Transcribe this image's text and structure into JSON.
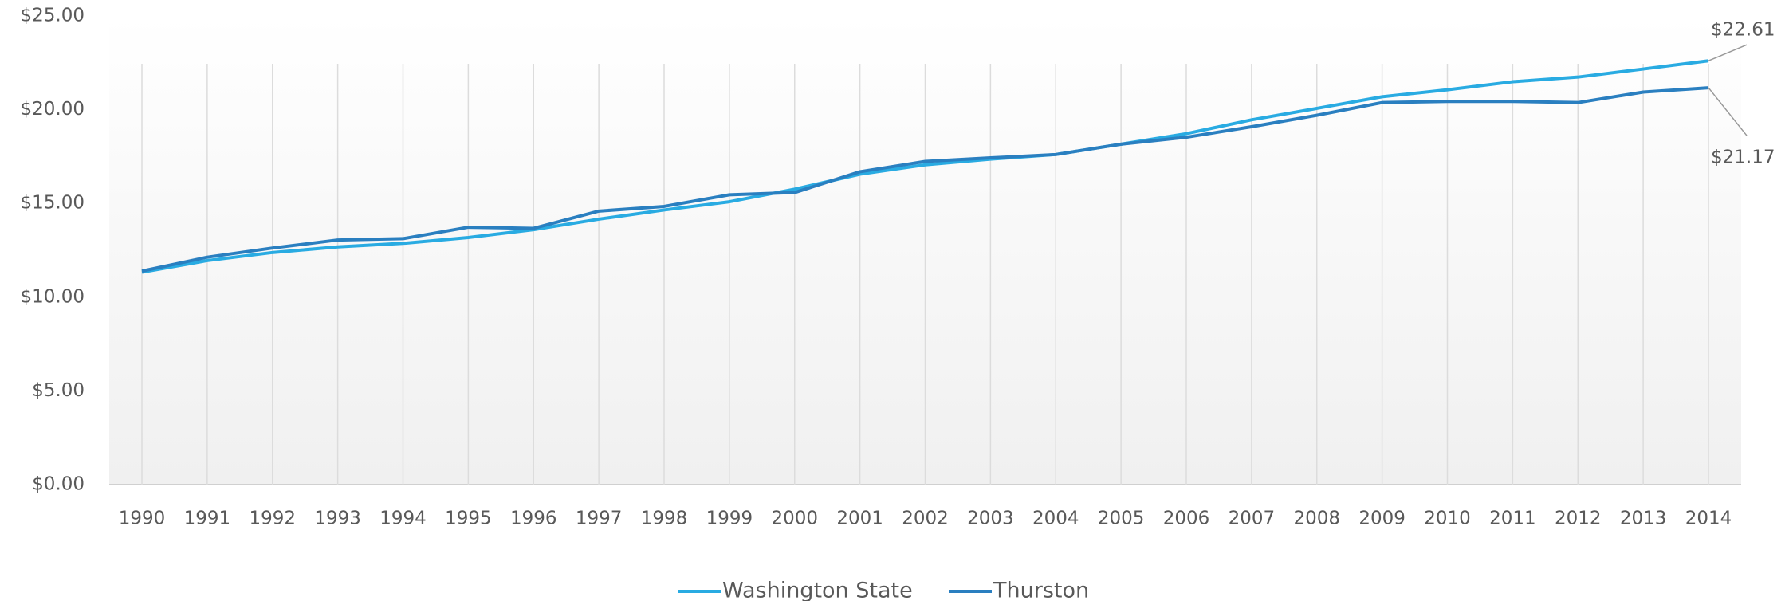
{
  "chart_data": {
    "type": "line",
    "categories": [
      "1990",
      "1991",
      "1992",
      "1993",
      "1994",
      "1995",
      "1996",
      "1997",
      "1998",
      "1999",
      "2000",
      "2001",
      "2002",
      "2003",
      "2004",
      "2005",
      "2006",
      "2007",
      "2008",
      "2009",
      "2010",
      "2011",
      "2012",
      "2013",
      "2014"
    ],
    "series": [
      {
        "name": "Washington State",
        "color": "#29abe2",
        "values": [
          11.33,
          11.95,
          12.38,
          12.68,
          12.87,
          13.18,
          13.6,
          14.16,
          14.65,
          15.09,
          15.76,
          16.56,
          17.06,
          17.36,
          17.61,
          18.16,
          18.72,
          19.46,
          20.07,
          20.69,
          21.06,
          21.49,
          21.74,
          22.17,
          22.61
        ],
        "value_labels": [
          null,
          null,
          null,
          null,
          null,
          null,
          null,
          null,
          null,
          null,
          null,
          null,
          null,
          null,
          null,
          null,
          null,
          null,
          null,
          null,
          null,
          null,
          null,
          null,
          "$22.61"
        ]
      },
      {
        "name": "Thurston",
        "color": "#2a7fc0",
        "values": [
          11.39,
          12.13,
          12.62,
          13.05,
          13.12,
          13.73,
          13.67,
          14.59,
          14.84,
          15.46,
          15.58,
          16.69,
          17.24,
          17.43,
          17.61,
          18.16,
          18.53,
          19.09,
          19.7,
          20.38,
          20.44,
          20.44,
          20.38,
          20.94,
          21.17
        ],
        "value_labels": [
          null,
          null,
          null,
          null,
          null,
          null,
          null,
          null,
          null,
          null,
          null,
          null,
          null,
          null,
          null,
          null,
          null,
          null,
          null,
          null,
          null,
          null,
          null,
          null,
          "$21.17"
        ]
      }
    ],
    "ylim": [
      0,
      25
    ],
    "yticks": [
      {
        "value": 0,
        "label": "$0.00"
      },
      {
        "value": 5,
        "label": "$5.00"
      },
      {
        "value": 10,
        "label": "$10.00"
      },
      {
        "value": 15,
        "label": "$15.00"
      },
      {
        "value": 20,
        "label": "$20.00"
      },
      {
        "value": 25,
        "label": "$25.00"
      }
    ],
    "grid": true,
    "legend": "bottom"
  }
}
